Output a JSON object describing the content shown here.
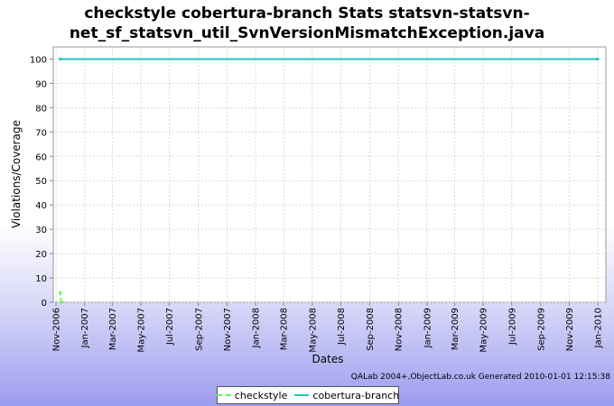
{
  "chart_data": {
    "type": "line",
    "title_line1": "checkstyle cobertura-branch  Stats statsvn-statsvn-",
    "title_line2": "net_sf_statsvn_util_SvnVersionMismatchException.java",
    "xlabel": "Dates",
    "ylabel": "Violations/Coverage",
    "ylim": [
      0,
      105
    ],
    "yticks": [
      0,
      10,
      20,
      30,
      40,
      50,
      60,
      70,
      80,
      90,
      100
    ],
    "xticks": [
      "Nov-2006",
      "Jan-2007",
      "Mar-2007",
      "May-2007",
      "Jul-2007",
      "Sep-2007",
      "Nov-2007",
      "Jan-2008",
      "Mar-2008",
      "May-2008",
      "Jul-2008",
      "Sep-2008",
      "Nov-2008",
      "Jan-2009",
      "Mar-2009",
      "May-2009",
      "Jul-2009",
      "Sep-2009",
      "Nov-2009",
      "Jan-2010"
    ],
    "grid": true,
    "legend_position": "bottom",
    "series": [
      {
        "name": "checkstyle",
        "color": "#55ff55",
        "style": "dashed",
        "points": [
          {
            "x": "2006-11-10",
            "y": 4
          },
          {
            "x": "2006-11-12",
            "y": 0
          }
        ]
      },
      {
        "name": "cobertura-branch",
        "color": "#1ac6b4",
        "style": "solid",
        "points": [
          {
            "x": "2006-11-10",
            "y": 100
          },
          {
            "x": "2009-12-31",
            "y": 100
          }
        ]
      }
    ],
    "credit": "QALab 2004+,ObjectLab.co.uk Generated 2010-01-01 12:15:38"
  }
}
